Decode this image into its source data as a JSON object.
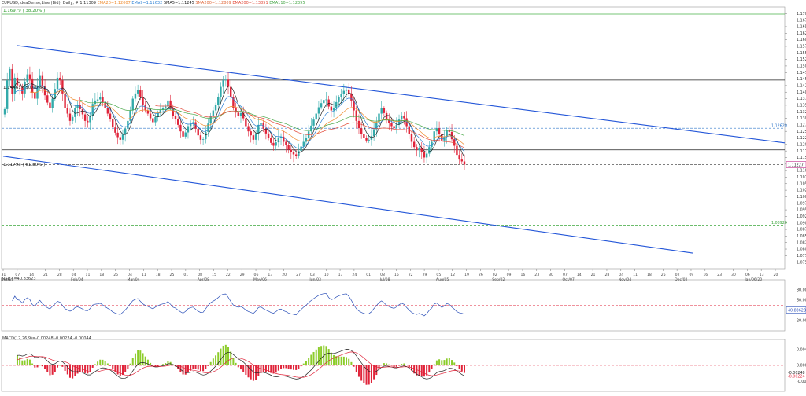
{
  "header": {
    "symbol": "EURUSD,ideaDense,Line (Bid), Daily, #",
    "price": "1.11309",
    "indicators": [
      {
        "text": "EMA20=1.12007",
        "color": "#ef8a2c"
      },
      {
        "text": "EMA9=1.11632",
        "color": "#2a7fd4"
      },
      {
        "text": "SMA5=1.11245",
        "color": "#222222"
      },
      {
        "text": "SMA200=1.12809",
        "color": "#e0683a"
      },
      {
        "text": "EMA200=1.13851",
        "color": "#e24a3a"
      },
      {
        "text": "EMA110=1.12395",
        "color": "#4aa84a"
      }
    ]
  },
  "fib_labels": {
    "top": "1.16979 ( 38.20% )",
    "mid": "1.14461 ( 50.00% )",
    "low": "1.11793 ( 61.80% )"
  },
  "price_tags": {
    "current": "1.11227",
    "upper_dashed": "1.12620",
    "lower_dashed": "1.08920"
  },
  "rsi_header": "RSI14=40.83623",
  "macd_header": "MACD(12,26,9)=-0.00248,-0.00224,-0.00044",
  "rsi_tag": "40.83623",
  "macd_tags": [
    "-0.00248",
    "-0.00224"
  ],
  "price_axis": [
    "1.17000",
    "1.16750",
    "1.16500",
    "1.16250",
    "1.16000",
    "1.15750",
    "1.15500",
    "1.15250",
    "1.15000",
    "1.14750",
    "1.14500",
    "1.14250",
    "1.14000",
    "1.13750",
    "1.13500",
    "1.13250",
    "1.13000",
    "1.12750",
    "1.12500",
    "1.12250",
    "1.12000",
    "1.11750",
    "1.11500",
    "1.11250",
    "1.11000",
    "1.10750",
    "1.10500",
    "1.10250",
    "1.10000",
    "1.09750",
    "1.09500",
    "1.09250",
    "1.09000",
    "1.08750",
    "1.08500",
    "1.08250",
    "1.08000",
    "1.07750",
    "1.07500"
  ],
  "rsi_axis": [
    "100.00000",
    "80.00000",
    "60.00000",
    "40.00000",
    "20.00000"
  ],
  "macd_axis": [
    "0.00400",
    "0.00000",
    "-0.00400"
  ],
  "x_axis": {
    "days": [
      "31",
      "07",
      "14",
      "21",
      "28",
      "04",
      "11",
      "18",
      "25",
      "04",
      "11",
      "18",
      "25",
      "01",
      "08",
      "15",
      "22",
      "29",
      "06",
      "13",
      "20",
      "27",
      "03",
      "10",
      "17",
      "24",
      "01",
      "08",
      "15",
      "22",
      "29",
      "05",
      "12",
      "19",
      "26",
      "02",
      "09",
      "16",
      "23",
      "30",
      "07",
      "14",
      "21",
      "28",
      "04",
      "11",
      "18",
      "25",
      "02",
      "09",
      "16",
      "23",
      "30",
      "06",
      "13",
      "20"
    ],
    "months": [
      {
        "label": "Dec/18",
        "i": 0
      },
      {
        "label": "Feb/04",
        "i": 5
      },
      {
        "label": "Mar/04",
        "i": 9
      },
      {
        "label": "Apr/08",
        "i": 14
      },
      {
        "label": "May/06",
        "i": 18
      },
      {
        "label": "Jun/03",
        "i": 22
      },
      {
        "label": "Jul/08",
        "i": 27
      },
      {
        "label": "Aug/05",
        "i": 31
      },
      {
        "label": "Sep/02",
        "i": 35
      },
      {
        "label": "Oct/07",
        "i": 40
      },
      {
        "label": "Nov/04",
        "i": 44
      },
      {
        "label": "Dec/02",
        "i": 48
      },
      {
        "label": "Jan/06/20",
        "i": 53
      }
    ]
  },
  "chart_data": {
    "type": "candlestick",
    "ylim": [
      1.0725,
      1.1725
    ],
    "channel_upper": [
      [
        1.1578,
        0
      ],
      [
        1.1205,
        1
      ]
    ],
    "channel_lower": [
      [
        1.1155,
        0
      ],
      [
        1.0785,
        1
      ]
    ],
    "horizontal_levels": {
      "fib_38": 1.16979,
      "fib_50": 1.14461,
      "fib_61": 1.11793,
      "current": 1.11227,
      "dashed_upper": 1.1262,
      "dashed_lower": 1.0892
    },
    "closes": [
      1.1335,
      1.1445,
      1.1488,
      1.1392,
      1.1455,
      1.1426,
      1.142,
      1.1395,
      1.144,
      1.1468,
      1.1452,
      1.1398,
      1.1375,
      1.1425,
      1.1462,
      1.1421,
      1.1388,
      1.136,
      1.134,
      1.1375,
      1.1412,
      1.1455,
      1.1445,
      1.1395,
      1.134,
      1.1318,
      1.129,
      1.1305,
      1.134,
      1.135,
      1.1335,
      1.1315,
      1.129,
      1.1285,
      1.131,
      1.1355,
      1.1368,
      1.1372,
      1.138,
      1.136,
      1.1338,
      1.1318,
      1.1298,
      1.1265,
      1.1245,
      1.1228,
      1.1218,
      1.1238,
      1.126,
      1.129,
      1.133,
      1.1375,
      1.1395,
      1.1408,
      1.138,
      1.135,
      1.133,
      1.1318,
      1.13,
      1.1285,
      1.1305,
      1.132,
      1.1332,
      1.134,
      1.1345,
      1.1368,
      1.134,
      1.131,
      1.1298,
      1.1275,
      1.125,
      1.123,
      1.1246,
      1.127,
      1.128,
      1.1285,
      1.126,
      1.1235,
      1.1218,
      1.122,
      1.1248,
      1.128,
      1.131,
      1.133,
      1.135,
      1.138,
      1.142,
      1.1445,
      1.1448,
      1.142,
      1.138,
      1.134,
      1.1322,
      1.131,
      1.132,
      1.13,
      1.127,
      1.125,
      1.1235,
      1.1218,
      1.124,
      1.1275,
      1.1282,
      1.126,
      1.1242,
      1.1225,
      1.1206,
      1.1195,
      1.1208,
      1.1225,
      1.123,
      1.121,
      1.1198,
      1.118,
      1.117,
      1.1162,
      1.1155,
      1.1175,
      1.1192,
      1.121,
      1.1225,
      1.125,
      1.1272,
      1.1295,
      1.1318,
      1.1342,
      1.1358,
      1.137,
      1.1372,
      1.1345,
      1.133,
      1.134,
      1.1362,
      1.138,
      1.1392,
      1.1405,
      1.141,
      1.1395,
      1.1368,
      1.133,
      1.129,
      1.1262,
      1.124,
      1.1225,
      1.1215,
      1.1218,
      1.1232,
      1.1258,
      1.1284,
      1.1318,
      1.1338,
      1.132,
      1.1295,
      1.1282,
      1.127,
      1.1262,
      1.1275,
      1.1295,
      1.131,
      1.13,
      1.127,
      1.124,
      1.121,
      1.119,
      1.1178,
      1.1185,
      1.117,
      1.115,
      1.1165,
      1.119,
      1.121,
      1.125,
      1.1262,
      1.124,
      1.1215,
      1.123,
      1.1255,
      1.1248,
      1.122,
      1.1195,
      1.116,
      1.1142,
      1.1135,
      1.1123
    ]
  }
}
